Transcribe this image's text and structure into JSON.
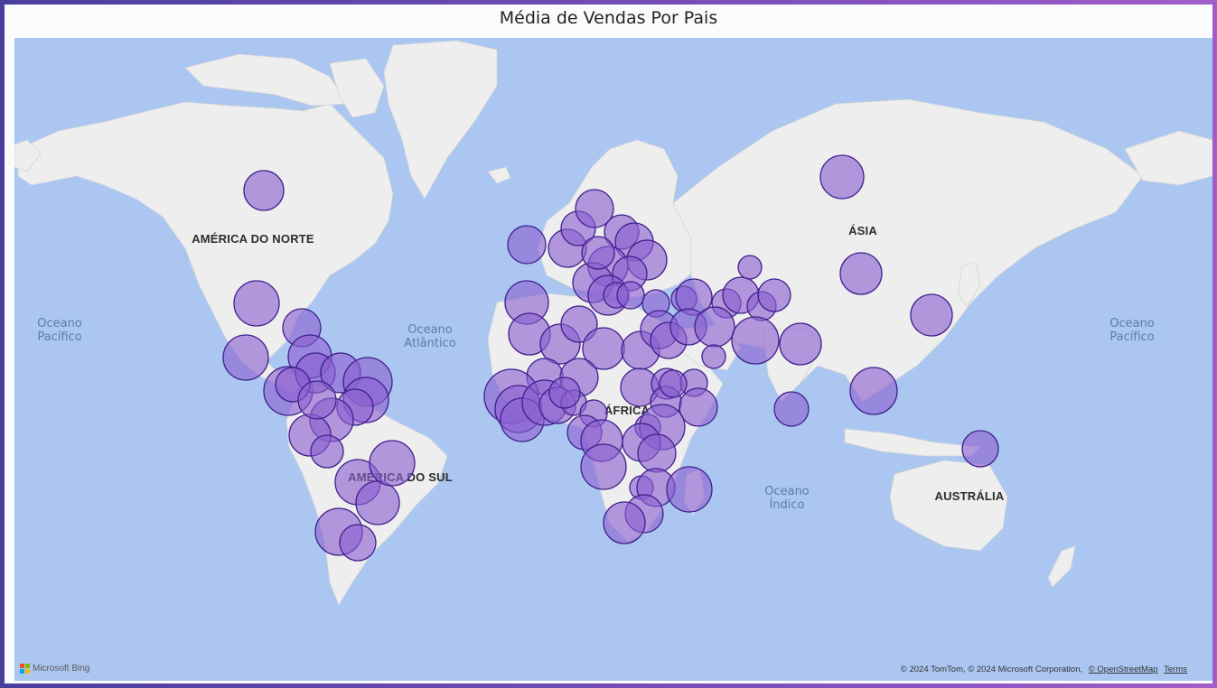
{
  "title": "Média de Vendas Por Pais",
  "continent_labels": {
    "north_america": "AMÉRICA DO NORTE",
    "south_america": "AMÉRICA DO SUL",
    "africa": "ÁFRICA",
    "asia": "ÁSIA",
    "australia": "AUSTRÁLIA"
  },
  "ocean_labels": {
    "pacific_left": [
      "Oceano",
      "Pacífico"
    ],
    "atlantic": [
      "Oceano",
      "Atlântico"
    ],
    "indian": [
      "Oceano",
      "Índico"
    ],
    "pacific_right": [
      "Oceano",
      "Pacífico"
    ]
  },
  "logo_text": "Microsoft Bing",
  "attribution": {
    "text": "© 2024 TomTom, © 2024 Microsoft Corporation,",
    "osm_link": "© OpenStreetMap",
    "terms_link": "Terms"
  },
  "colors": {
    "water": "#abc7f1",
    "land": "#eeeeee",
    "bubble_fill": "#8a5fd0",
    "bubble_stroke": "#3f1f8c"
  }
}
